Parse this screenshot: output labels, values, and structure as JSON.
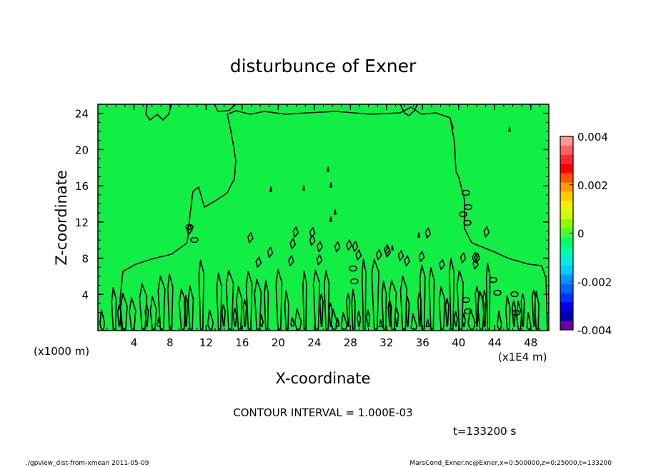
{
  "chart_data": {
    "type": "heatmap",
    "title": "disturbunce of Exner",
    "xlabel": "X-coordinate",
    "ylabel": "Z-coordinate",
    "x_unit_label": "(x1000 m)",
    "x_scale_label": "(x1E4 m)",
    "xlim": [
      0,
      50
    ],
    "ylim": [
      0,
      25
    ],
    "x_ticks": [
      4,
      8,
      12,
      16,
      20,
      24,
      28,
      32,
      36,
      40,
      44,
      48
    ],
    "y_ticks": [
      4,
      8,
      12,
      16,
      20,
      24
    ],
    "colorbar": {
      "range": [
        -0.004,
        0.004
      ],
      "tick_labels": [
        "0.004",
        "0.002",
        "0",
        "-0.002",
        "-0.004"
      ],
      "tick_values": [
        0.004,
        0.002,
        0,
        -0.002,
        -0.004
      ],
      "colors": [
        "#ff9999",
        "#ff6060",
        "#ff2a2a",
        "#ff0000",
        "#ff5500",
        "#ff9900",
        "#ffcc00",
        "#f2f200",
        "#ccff00",
        "#88ff00",
        "#44ff33",
        "#00ff66",
        "#00ffaa",
        "#00eedd",
        "#00ccff",
        "#0099ff",
        "#0066ff",
        "#0033ff",
        "#0000ee",
        "#0000aa",
        "#6a00a8"
      ]
    },
    "field_color": "#11ee44",
    "contour_interval_text": "CONTOUR INTERVAL = 1.000E-03",
    "time_text": "t=133200  s",
    "footer_left": "./gpview_dist-from-xmean  2011-05-09",
    "footer_right": "MarsCond_Exner.nc@Exner,x=0:500000,z=0:25000,t=133200"
  }
}
